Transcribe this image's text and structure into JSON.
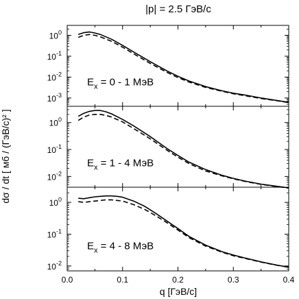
{
  "chart_data": {
    "type": "line",
    "title": "|p| = 2.5 ГэВ/с",
    "xlabel": "q  [ГэВ/с]",
    "ylabel": "dσ / dt  [ мб / (ГэВ/с)² ]",
    "xlim": [
      0.0,
      0.4
    ],
    "x_ticks": [
      "0.0",
      "0.1",
      "0.2",
      "0.3",
      "0.4"
    ],
    "yscale": "log",
    "grid": false,
    "line_styles": {
      "solid": "#000000",
      "dashed": "#000000"
    },
    "panels": [
      {
        "annotation": "E",
        "annotation_sub": "x",
        "annotation_rest": " = 0 - 1 МэВ",
        "ylim": [
          0.0004,
          3
        ],
        "y_ticks": [
          {
            "value": 1,
            "label": "10",
            "exp": "0"
          },
          {
            "value": 0.1,
            "label": "10",
            "exp": "-1"
          },
          {
            "value": 0.01,
            "label": "10",
            "exp": "-2"
          },
          {
            "value": 0.001,
            "label": "10",
            "exp": "-3"
          }
        ],
        "series": [
          {
            "style": "solid",
            "x": [
              0.02,
              0.03,
              0.04,
              0.05,
              0.06,
              0.08,
              0.1,
              0.12,
              0.15,
              0.18,
              0.2,
              0.22,
              0.25,
              0.28,
              0.3,
              0.32,
              0.35,
              0.38,
              0.4
            ],
            "y": [
              1.1,
              1.35,
              1.45,
              1.3,
              1.1,
              0.65,
              0.33,
              0.16,
              0.055,
              0.02,
              0.011,
              0.0065,
              0.0035,
              0.0022,
              0.0017,
              0.0014,
              0.001,
              0.00075,
              0.00062
            ]
          },
          {
            "style": "dashed",
            "x": [
              0.02,
              0.03,
              0.04,
              0.05,
              0.06,
              0.08,
              0.1,
              0.12,
              0.15,
              0.18,
              0.2,
              0.22,
              0.25,
              0.28,
              0.3,
              0.32,
              0.35,
              0.38,
              0.4
            ],
            "y": [
              0.8,
              1.0,
              1.1,
              1.0,
              0.85,
              0.52,
              0.27,
              0.13,
              0.045,
              0.017,
              0.0095,
              0.0058,
              0.0032,
              0.0021,
              0.0016,
              0.0013,
              0.00095,
              0.00073,
              0.0006
            ]
          }
        ]
      },
      {
        "annotation": "E",
        "annotation_sub": "x",
        "annotation_rest": " = 1 - 4 МэВ",
        "ylim": [
          0.004,
          4
        ],
        "y_ticks": [
          {
            "value": 1,
            "label": "10",
            "exp": "0"
          },
          {
            "value": 0.1,
            "label": "10",
            "exp": "-1"
          },
          {
            "value": 0.01,
            "label": "10",
            "exp": "-2"
          }
        ],
        "series": [
          {
            "style": "solid",
            "x": [
              0.02,
              0.03,
              0.04,
              0.05,
              0.06,
              0.07,
              0.08,
              0.1,
              0.12,
              0.15,
              0.18,
              0.2,
              0.22,
              0.25,
              0.28,
              0.3,
              0.32,
              0.35,
              0.38,
              0.4
            ],
            "y": [
              1.7,
              2.2,
              2.6,
              2.8,
              2.8,
              2.5,
              2.1,
              1.3,
              0.75,
              0.3,
              0.11,
              0.06,
              0.034,
              0.018,
              0.011,
              0.0085,
              0.0068,
              0.0052,
              0.0043,
              0.0038
            ]
          },
          {
            "style": "dashed",
            "x": [
              0.02,
              0.03,
              0.04,
              0.05,
              0.06,
              0.07,
              0.08,
              0.1,
              0.12,
              0.15,
              0.18,
              0.2,
              0.22,
              0.25,
              0.28,
              0.3,
              0.32,
              0.35,
              0.38,
              0.4
            ],
            "y": [
              1.2,
              1.6,
              1.9,
              2.0,
              2.0,
              1.85,
              1.6,
              1.05,
              0.6,
              0.25,
              0.095,
              0.052,
              0.03,
              0.016,
              0.0105,
              0.0082,
              0.0066,
              0.0051,
              0.0042,
              0.0037
            ]
          }
        ]
      },
      {
        "annotation": "E",
        "annotation_sub": "x",
        "annotation_rest": " = 4 - 8 МэВ",
        "ylim": [
          0.007,
          3
        ],
        "y_ticks": [
          {
            "value": 1,
            "label": "10",
            "exp": "0"
          },
          {
            "value": 0.1,
            "label": "10",
            "exp": "-1"
          },
          {
            "value": 0.01,
            "label": "10",
            "exp": "-2"
          }
        ],
        "series": [
          {
            "style": "solid",
            "x": [
              0.02,
              0.03,
              0.04,
              0.05,
              0.06,
              0.07,
              0.08,
              0.09,
              0.1,
              0.12,
              0.14,
              0.16,
              0.18,
              0.2,
              0.22,
              0.25,
              0.28,
              0.3,
              0.32,
              0.35,
              0.38,
              0.4
            ],
            "y": [
              1.35,
              1.3,
              1.4,
              1.5,
              1.55,
              1.6,
              1.6,
              1.55,
              1.45,
              1.1,
              0.75,
              0.45,
              0.26,
              0.15,
              0.085,
              0.045,
              0.028,
              0.022,
              0.018,
              0.0135,
              0.0105,
              0.0092
            ]
          },
          {
            "style": "dashed",
            "x": [
              0.02,
              0.03,
              0.04,
              0.05,
              0.06,
              0.07,
              0.08,
              0.09,
              0.1,
              0.12,
              0.14,
              0.16,
              0.18,
              0.2,
              0.22,
              0.25,
              0.28,
              0.3,
              0.32,
              0.35,
              0.38,
              0.4
            ],
            "y": [
              1.05,
              1.0,
              1.05,
              1.1,
              1.15,
              1.2,
              1.2,
              1.15,
              1.1,
              0.85,
              0.6,
              0.38,
              0.23,
              0.135,
              0.078,
              0.042,
              0.027,
              0.021,
              0.0175,
              0.0132,
              0.0104,
              0.0091
            ]
          }
        ]
      }
    ]
  }
}
